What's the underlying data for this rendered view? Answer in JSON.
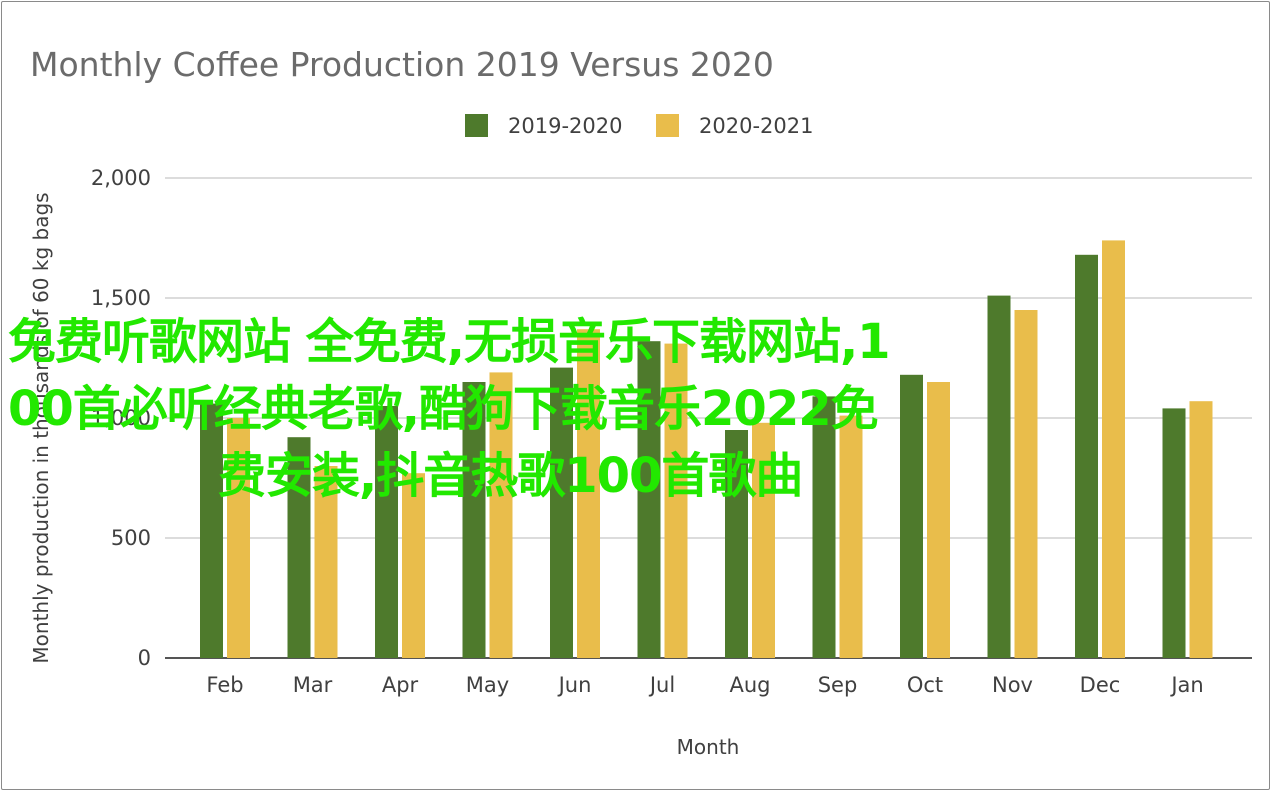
{
  "chart_data": {
    "type": "bar",
    "title": "Monthly Coffee Production 2019 Versus 2020",
    "xlabel": "Month",
    "ylabel": "Monthly production in thousands of 60 kg bags",
    "ylim": [
      0,
      2000
    ],
    "yticks": [
      0,
      500,
      1000,
      1500,
      2000
    ],
    "ytick_labels": [
      "0",
      "500",
      "1,000",
      "1,500",
      "2,000"
    ],
    "grid": true,
    "legend_position": "top-center",
    "categories": [
      "Feb",
      "Mar",
      "Apr",
      "May",
      "Jun",
      "Jul",
      "Aug",
      "Sep",
      "Oct",
      "Nov",
      "Dec",
      "Jan"
    ],
    "series": [
      {
        "name": "2019-2020",
        "color": "#4e7a2c",
        "values": [
          1060,
          920,
          1050,
          1150,
          1210,
          1320,
          950,
          1090,
          1180,
          1510,
          1680,
          1040
        ]
      },
      {
        "name": "2020-2021",
        "color": "#e9bd4b",
        "values": [
          1000,
          800,
          770,
          1190,
          1370,
          1310,
          980,
          1010,
          1150,
          1450,
          1740,
          1070
        ]
      }
    ]
  },
  "overlay": {
    "line1": "免费听歌网站 全免费,无损音乐下载网站,1",
    "line2": "00首必听经典老歌,酷狗下载音乐2022免",
    "line3": "费安装,抖音热歌100首歌曲",
    "color": "#22e800"
  }
}
